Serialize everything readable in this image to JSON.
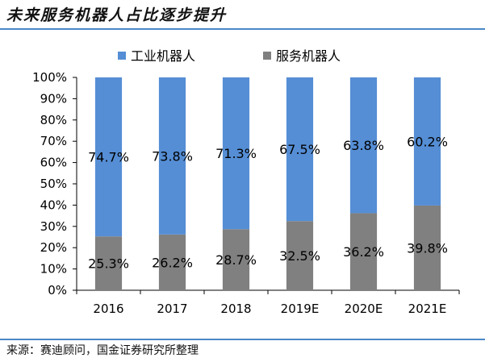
{
  "header": {
    "title": "未来服务机器人占比逐步提升"
  },
  "footer": {
    "source": "来源：赛迪顾问，国金证券研究所整理"
  },
  "chart_data": {
    "type": "bar",
    "stacked": true,
    "categories": [
      "2016",
      "2017",
      "2018",
      "2019E",
      "2020E",
      "2021E"
    ],
    "series": [
      {
        "name": "服务机器人",
        "values": [
          25.3,
          26.2,
          28.7,
          32.5,
          36.2,
          39.8
        ],
        "labels": [
          "25.3%",
          "26.2%",
          "28.7%",
          "32.5%",
          "36.2%",
          "39.8%"
        ],
        "color": "#808080"
      },
      {
        "name": "工业机器人",
        "values": [
          74.7,
          73.8,
          71.3,
          67.5,
          63.8,
          60.2
        ],
        "labels": [
          "74.7%",
          "73.8%",
          "71.3%",
          "67.5%",
          "63.8%",
          "60.2%"
        ],
        "color": "#558ed5"
      }
    ],
    "legend_order": [
      "工业机器人",
      "服务机器人"
    ],
    "ylim": [
      0,
      100
    ],
    "yticks": [
      "0%",
      "10%",
      "20%",
      "30%",
      "40%",
      "50%",
      "60%",
      "70%",
      "80%",
      "90%",
      "100%"
    ],
    "legend": "top",
    "grid": false
  }
}
